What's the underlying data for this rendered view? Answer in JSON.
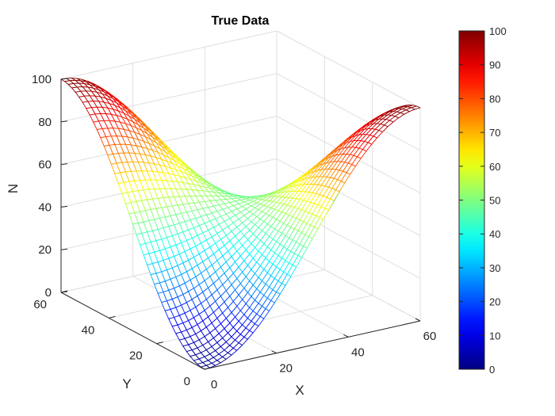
{
  "chart_data": {
    "type": "mesh",
    "title": "True Data",
    "xlabel": "X",
    "ylabel": "Y",
    "zlabel": "N",
    "xlim": [
      0,
      60
    ],
    "ylim": [
      0,
      60
    ],
    "zlim": [
      0,
      100
    ],
    "xticks": [
      "0",
      "20",
      "40",
      "60"
    ],
    "yticks": [
      "0",
      "20",
      "40",
      "60"
    ],
    "zticks": [
      "0",
      "20",
      "40",
      "60",
      "80",
      "100"
    ],
    "colorbar": {
      "ticks": [
        "0",
        "10",
        "20",
        "30",
        "40",
        "50",
        "60",
        "70",
        "80",
        "90",
        "100"
      ],
      "colormap": "jet",
      "range": [
        0,
        100
      ]
    },
    "grid": true,
    "surface": {
      "description_formula": "N = 50 - 50*cos(pi*X/60)*cos(pi*Y/60)",
      "x_range": [
        0,
        60
      ],
      "y_range": [
        0,
        60
      ],
      "resolution": 41,
      "z_at_corners": {
        "x0_y0": 0,
        "x60_y0": 100,
        "x0_y60": 100,
        "x60_y60": 0
      }
    }
  }
}
